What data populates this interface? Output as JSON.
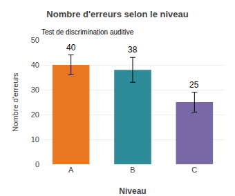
{
  "chart_data": {
    "type": "bar",
    "title": "Nombre d'erreurs selon le niveau",
    "subtitle": "Test de discrimination auditive",
    "xlabel": "Niveau",
    "ylabel": "Nombre d'erreurs",
    "categories": [
      "A",
      "B",
      "C"
    ],
    "values": [
      40,
      38,
      25
    ],
    "errors": [
      4,
      5,
      4
    ],
    "colors": [
      "#E87722",
      "#2E8B9A",
      "#7868A6"
    ],
    "ylim": [
      0,
      50
    ],
    "yticks": [
      0,
      10,
      20,
      30,
      40,
      50
    ],
    "grid": true,
    "data_labels": true
  }
}
